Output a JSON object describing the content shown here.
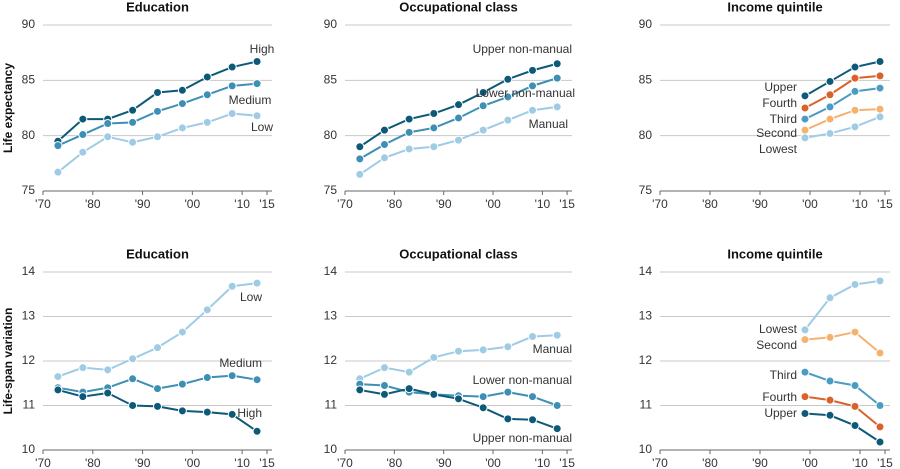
{
  "chart_data": [
    {
      "type": "line",
      "title": "Education",
      "ylabel": "Life expectancy",
      "x": [
        1973,
        1978,
        1983,
        1988,
        1993,
        1998,
        2003,
        2008,
        2013
      ],
      "xlim": [
        1970,
        2016
      ],
      "xticks": [
        {
          "value": 1970,
          "label": "'70"
        },
        {
          "value": 1980,
          "label": "'80"
        },
        {
          "value": 1990,
          "label": "'90"
        },
        {
          "value": 2000,
          "label": "'00"
        },
        {
          "value": 2010,
          "label": "'10"
        },
        {
          "value": 2015,
          "label": "'15"
        }
      ],
      "ylim": [
        75,
        90
      ],
      "yticks": [
        75,
        80,
        85,
        90
      ],
      "grid": true,
      "series": [
        {
          "name": "High",
          "color": "#0d5a78",
          "values": [
            79.5,
            81.5,
            81.5,
            82.3,
            83.9,
            84.1,
            85.3,
            86.2,
            86.7
          ]
        },
        {
          "name": "Medium",
          "color": "#3d8fb4",
          "values": [
            79.1,
            80.1,
            81.1,
            81.2,
            82.2,
            82.9,
            83.7,
            84.5,
            84.7
          ]
        },
        {
          "name": "Low",
          "color": "#9fcbe5",
          "values": [
            76.7,
            78.5,
            79.9,
            79.4,
            79.9,
            80.7,
            81.2,
            82.0,
            81.8
          ]
        }
      ]
    },
    {
      "type": "line",
      "title": "Occupational class",
      "x": [
        1973,
        1978,
        1983,
        1988,
        1993,
        1998,
        2003,
        2008,
        2013
      ],
      "xlim": [
        1970,
        2016
      ],
      "xticks": [
        {
          "value": 1970,
          "label": "'70"
        },
        {
          "value": 1980,
          "label": "'80"
        },
        {
          "value": 1990,
          "label": "'90"
        },
        {
          "value": 2000,
          "label": "'00"
        },
        {
          "value": 2010,
          "label": "'10"
        },
        {
          "value": 2015,
          "label": "'15"
        }
      ],
      "ylim": [
        75,
        90
      ],
      "yticks": [
        75,
        80,
        85,
        90
      ],
      "grid": true,
      "series": [
        {
          "name": "Upper non-manual",
          "color": "#0d5a78",
          "values": [
            79.0,
            80.5,
            81.5,
            82.0,
            82.8,
            83.9,
            85.1,
            85.9,
            86.5
          ]
        },
        {
          "name": "Lower non-manual",
          "color": "#3d8fb4",
          "values": [
            77.9,
            79.2,
            80.3,
            80.7,
            81.6,
            82.7,
            83.5,
            84.5,
            85.2
          ]
        },
        {
          "name": "Manual",
          "color": "#9fcbe5",
          "values": [
            76.5,
            78.0,
            78.8,
            79.0,
            79.6,
            80.5,
            81.4,
            82.3,
            82.6
          ]
        }
      ]
    },
    {
      "type": "line",
      "title": "Income quintile",
      "x": [
        1999,
        2004,
        2009,
        2014
      ],
      "xlim": [
        1970,
        2016
      ],
      "xticks": [
        {
          "value": 1970,
          "label": "'70"
        },
        {
          "value": 1980,
          "label": "'80"
        },
        {
          "value": 1990,
          "label": "'90"
        },
        {
          "value": 2000,
          "label": "'00"
        },
        {
          "value": 2010,
          "label": "'10"
        },
        {
          "value": 2015,
          "label": "'15"
        }
      ],
      "ylim": [
        75,
        90
      ],
      "yticks": [
        75,
        80,
        85,
        90
      ],
      "grid": true,
      "series": [
        {
          "name": "Upper",
          "color": "#0d5a78",
          "values": [
            83.6,
            84.9,
            86.2,
            86.7
          ]
        },
        {
          "name": "Fourth",
          "color": "#d9622b",
          "values": [
            82.5,
            83.7,
            85.2,
            85.4
          ]
        },
        {
          "name": "Third",
          "color": "#4b9cc2",
          "values": [
            81.5,
            82.6,
            84.0,
            84.3
          ]
        },
        {
          "name": "Second",
          "color": "#f5b26e",
          "values": [
            80.5,
            81.5,
            82.3,
            82.4
          ]
        },
        {
          "name": "Lowest",
          "color": "#9fcbe5",
          "values": [
            79.8,
            80.2,
            80.8,
            81.7
          ]
        }
      ]
    },
    {
      "type": "line",
      "title": "Education",
      "ylabel": "Life-span variation",
      "x": [
        1973,
        1978,
        1983,
        1988,
        1993,
        1998,
        2003,
        2008,
        2013
      ],
      "xlim": [
        1970,
        2016
      ],
      "xticks": [
        {
          "value": 1970,
          "label": "'70"
        },
        {
          "value": 1980,
          "label": "'80"
        },
        {
          "value": 1990,
          "label": "'90"
        },
        {
          "value": 2000,
          "label": "'00"
        },
        {
          "value": 2010,
          "label": "'10"
        },
        {
          "value": 2015,
          "label": "'15"
        }
      ],
      "ylim": [
        10,
        14
      ],
      "yticks": [
        10,
        11,
        12,
        13,
        14
      ],
      "grid": true,
      "series": [
        {
          "name": "Low",
          "color": "#9fcbe5",
          "values": [
            11.65,
            11.85,
            11.8,
            12.05,
            12.3,
            12.65,
            13.15,
            13.68,
            13.75
          ]
        },
        {
          "name": "Medium",
          "color": "#3d8fb4",
          "values": [
            11.4,
            11.3,
            11.4,
            11.6,
            11.38,
            11.48,
            11.63,
            11.67,
            11.58
          ]
        },
        {
          "name": "High",
          "color": "#0d5a78",
          "values": [
            11.35,
            11.2,
            11.28,
            11.0,
            10.98,
            10.88,
            10.85,
            10.8,
            10.42
          ]
        }
      ]
    },
    {
      "type": "line",
      "title": "Occupational class",
      "x": [
        1973,
        1978,
        1983,
        1988,
        1993,
        1998,
        2003,
        2008,
        2013
      ],
      "xlim": [
        1970,
        2016
      ],
      "xticks": [
        {
          "value": 1970,
          "label": "'70"
        },
        {
          "value": 1980,
          "label": "'80"
        },
        {
          "value": 1990,
          "label": "'90"
        },
        {
          "value": 2000,
          "label": "'00"
        },
        {
          "value": 2010,
          "label": "'10"
        },
        {
          "value": 2015,
          "label": "'15"
        }
      ],
      "ylim": [
        10,
        14
      ],
      "yticks": [
        10,
        11,
        12,
        13,
        14
      ],
      "grid": true,
      "series": [
        {
          "name": "Manual",
          "color": "#9fcbe5",
          "values": [
            11.6,
            11.85,
            11.75,
            12.08,
            12.22,
            12.25,
            12.32,
            12.55,
            12.58
          ]
        },
        {
          "name": "Lower non-manual",
          "color": "#3d8fb4",
          "values": [
            11.48,
            11.45,
            11.3,
            11.25,
            11.22,
            11.2,
            11.3,
            11.2,
            11.0
          ]
        },
        {
          "name": "Upper non-manual",
          "color": "#0d5a78",
          "values": [
            11.35,
            11.25,
            11.38,
            11.25,
            11.15,
            10.95,
            10.7,
            10.68,
            10.48
          ]
        }
      ]
    },
    {
      "type": "line",
      "title": "Income quintile",
      "x": [
        1999,
        2004,
        2009,
        2014
      ],
      "xlim": [
        1970,
        2016
      ],
      "xticks": [
        {
          "value": 1970,
          "label": "'70"
        },
        {
          "value": 1980,
          "label": "'80"
        },
        {
          "value": 1990,
          "label": "'90"
        },
        {
          "value": 2000,
          "label": "'00"
        },
        {
          "value": 2010,
          "label": "'10"
        },
        {
          "value": 2015,
          "label": "'15"
        }
      ],
      "ylim": [
        10,
        14
      ],
      "yticks": [
        10,
        11,
        12,
        13,
        14
      ],
      "grid": true,
      "series": [
        {
          "name": "Lowest",
          "color": "#9fcbe5",
          "values": [
            12.7,
            13.42,
            13.72,
            13.8
          ]
        },
        {
          "name": "Second",
          "color": "#f5b26e",
          "values": [
            12.48,
            12.53,
            12.65,
            12.18
          ]
        },
        {
          "name": "Third",
          "color": "#4b9cc2",
          "values": [
            11.75,
            11.55,
            11.45,
            11.0
          ]
        },
        {
          "name": "Fourth",
          "color": "#d9622b",
          "values": [
            11.2,
            11.12,
            10.98,
            10.52
          ]
        },
        {
          "name": "Upper",
          "color": "#0d5a78",
          "values": [
            10.82,
            10.78,
            10.55,
            10.18
          ]
        }
      ]
    }
  ]
}
